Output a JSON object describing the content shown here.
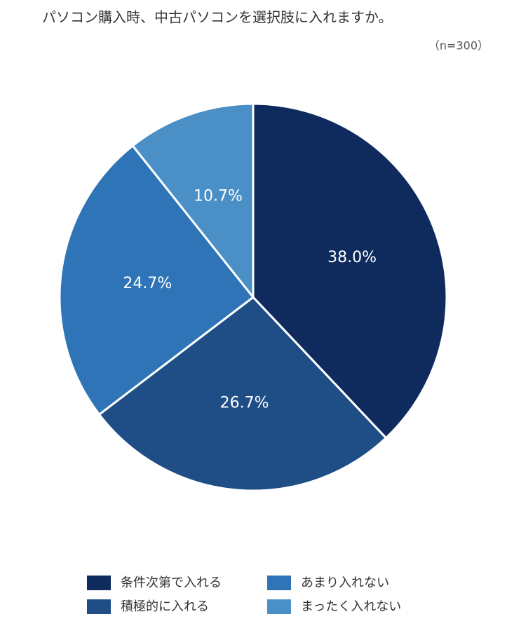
{
  "chart_data": {
    "type": "pie",
    "title": "パソコン購入時、中古パソコンを選択肢に入れますか。",
    "subtitle": "（n=300）",
    "categories": [
      "条件次第で入れる",
      "積極的に入れる",
      "あまり入れない",
      "まったく入れない"
    ],
    "values": [
      38.0,
      26.7,
      24.7,
      10.7
    ],
    "value_labels": [
      "38.0%",
      "26.7%",
      "24.7%",
      "10.7%"
    ],
    "colors": [
      "#0f2b5e",
      "#1f4e87",
      "#2e74b6",
      "#4a8fc6"
    ],
    "legend": "bottom"
  }
}
